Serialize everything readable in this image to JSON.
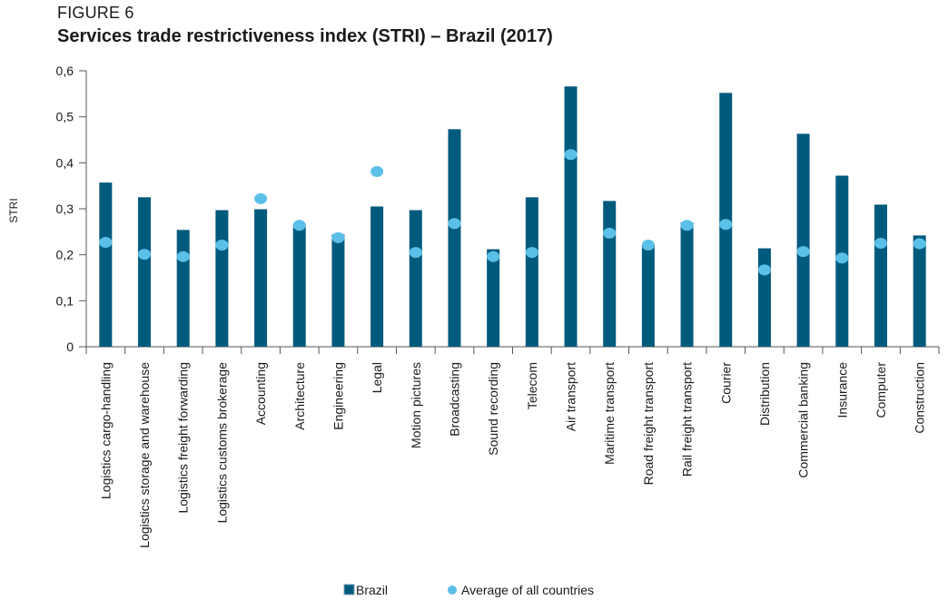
{
  "figure_label": "FIGURE 6",
  "title": "Services trade restrictiveness index (STRI) – Brazil (2017)",
  "chart_data": {
    "type": "bar",
    "title": "Services trade restrictiveness index (STRI) – Brazil (2017)",
    "ylabel": "STRI",
    "xlabel": "",
    "ylim": [
      0,
      0.6
    ],
    "yticks": [
      "0",
      "0,1",
      "0,2",
      "0,3",
      "0,4",
      "0,5",
      "0,6"
    ],
    "grid": false,
    "legend_position": "bottom",
    "categories": [
      "Logistics cargo-handling",
      "Logistics storage and warehouse",
      "Logistics freight forwarding",
      "Logistics customs brokerage",
      "Accounting",
      "Architecture",
      "Engineering",
      "Legal",
      "Motion pictures",
      "Broadcasting",
      "Sound recording",
      "Telecom",
      "Air transport",
      "Maritime transport",
      "Road freight transport",
      "Rail freight transport",
      "Courier",
      "Distribution",
      "Commercial banking",
      "Insurance",
      "Computer",
      "Construction"
    ],
    "series": [
      {
        "name": "Brazil",
        "type": "bar",
        "color": "#005a7c",
        "values": [
          0.357,
          0.325,
          0.254,
          0.297,
          0.299,
          0.266,
          0.244,
          0.305,
          0.297,
          0.473,
          0.212,
          0.325,
          0.566,
          0.317,
          0.222,
          0.27,
          0.552,
          0.214,
          0.463,
          0.372,
          0.309,
          0.242
        ]
      },
      {
        "name": "Average of all countries",
        "type": "point",
        "color": "#5bc0e8",
        "values": [
          0.227,
          0.201,
          0.196,
          0.221,
          0.322,
          0.264,
          0.237,
          0.381,
          0.205,
          0.268,
          0.196,
          0.205,
          0.418,
          0.247,
          0.221,
          0.264,
          0.266,
          0.167,
          0.207,
          0.193,
          0.225,
          0.224
        ]
      }
    ]
  }
}
